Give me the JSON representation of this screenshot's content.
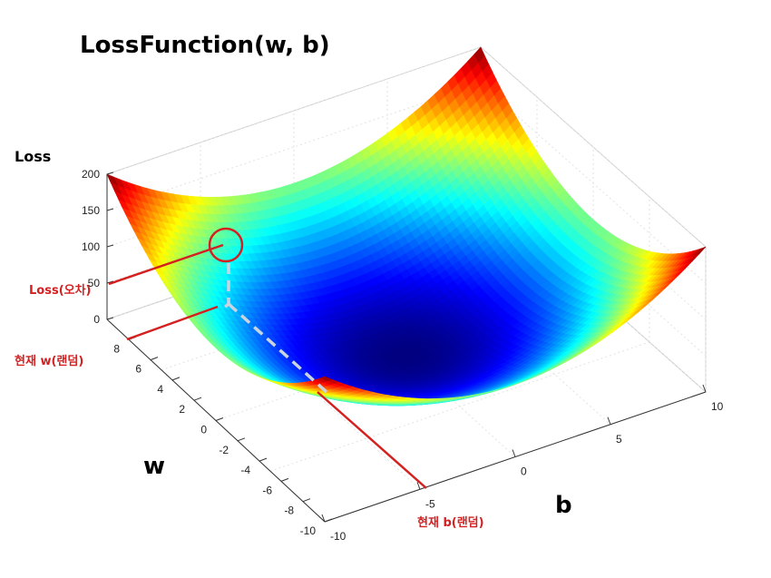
{
  "chart_data": {
    "type": "surface",
    "title": "LossFunction(w, b)",
    "zlabel": "Loss",
    "xlabel": "w",
    "ylabel": "b",
    "w_range": [
      -10,
      10
    ],
    "b_range": [
      -10,
      10
    ],
    "zlim": [
      0,
      200
    ],
    "w_ticks": [
      -10,
      -8,
      -6,
      -4,
      -2,
      0,
      2,
      4,
      6,
      8
    ],
    "b_ticks": [
      -10,
      -5,
      0,
      5,
      10
    ],
    "z_ticks": [
      0,
      50,
      100,
      150,
      200
    ],
    "surface": "Loss = w^2 + b^2",
    "colormap": "jet",
    "grid": true,
    "current_point": {
      "w": 8,
      "b": -5,
      "loss": 89
    }
  },
  "annotations": {
    "loss": "Loss(오차)",
    "current_w": "현재 w(랜덤)",
    "current_b": "현재 b(랜덤)"
  },
  "colors": {
    "annotation": "#d42020",
    "guide": "#c8d4e0"
  }
}
